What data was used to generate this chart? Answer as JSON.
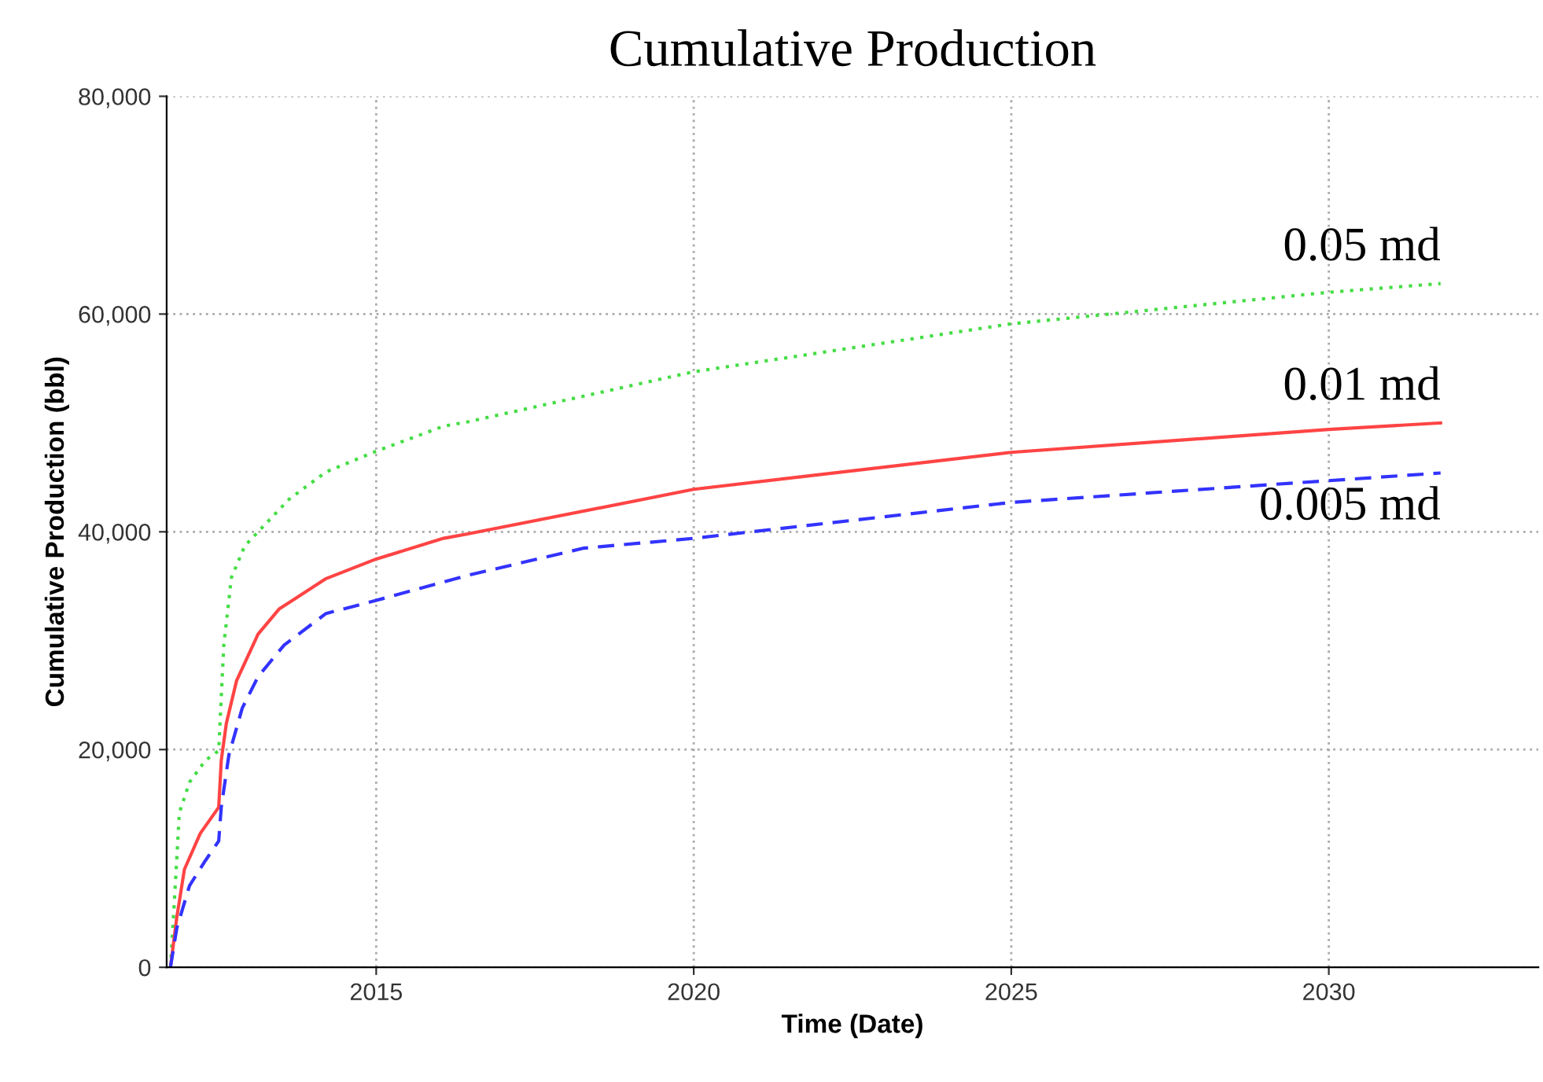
{
  "chart_data": {
    "type": "line",
    "title": "Cumulative Production",
    "xlabel": "Time (Date)",
    "ylabel": "Cumulative Production (bbl)",
    "xlim": [
      2011.7,
      2033.3
    ],
    "xticks": [
      2015,
      2020,
      2025,
      2030
    ],
    "ylim": [
      0,
      80000
    ],
    "yticks": [
      {
        "value": 0,
        "label": "0"
      },
      {
        "value": 20000,
        "label": "20,000"
      },
      {
        "value": 40000,
        "label": "40,000"
      },
      {
        "value": 60000,
        "label": "60,000"
      },
      {
        "value": 80000,
        "label": "80,000"
      }
    ],
    "grid": true,
    "legend": false,
    "marker": "none",
    "series": [
      {
        "name": "0.05 md",
        "color": "#44dd44",
        "line_style": "dotted",
        "x": [
          2011.76,
          2011.83,
          2011.9,
          2012.06,
          2012.31,
          2012.52,
          2012.56,
          2012.6,
          2012.72,
          2012.93,
          2013.14,
          2013.63,
          2014.21,
          2015.0,
          2016.06,
          2016.44,
          2020.0,
          2025.0,
          2030.0,
          2031.76
        ],
        "values": [
          0,
          6900,
          14200,
          17000,
          19000,
          19900,
          24800,
          29600,
          35800,
          38700,
          40000,
          43000,
          45500,
          47400,
          49700,
          50100,
          54700,
          59100,
          62000,
          62800
        ]
      },
      {
        "name": "0.01 md",
        "color": "#ff4444",
        "line_style": "solid",
        "x": [
          2011.76,
          2011.86,
          2011.98,
          2012.23,
          2012.52,
          2012.56,
          2012.64,
          2012.8,
          2013.14,
          2013.47,
          2014.21,
          2015.0,
          2016.06,
          2016.44,
          2020.0,
          2025.0,
          2030.0,
          2031.76
        ],
        "values": [
          0,
          4600,
          9000,
          12300,
          14700,
          19000,
          22400,
          26300,
          30600,
          32900,
          35700,
          37500,
          39400,
          39800,
          43900,
          47300,
          49400,
          50000
        ]
      },
      {
        "name": "0.005 md",
        "color": "#3333ff",
        "line_style": "dashed",
        "x": [
          2011.76,
          2011.86,
          2012.06,
          2012.31,
          2012.52,
          2012.56,
          2012.68,
          2012.89,
          2013.14,
          2013.55,
          2014.21,
          2015.0,
          2016.44,
          2018.27,
          2020.0,
          2025.0,
          2030.0,
          2031.76
        ],
        "values": [
          0,
          3600,
          7500,
          9800,
          11600,
          14700,
          19500,
          23800,
          26700,
          29600,
          32500,
          33700,
          36000,
          38500,
          39400,
          42700,
          44700,
          45400
        ]
      }
    ]
  }
}
